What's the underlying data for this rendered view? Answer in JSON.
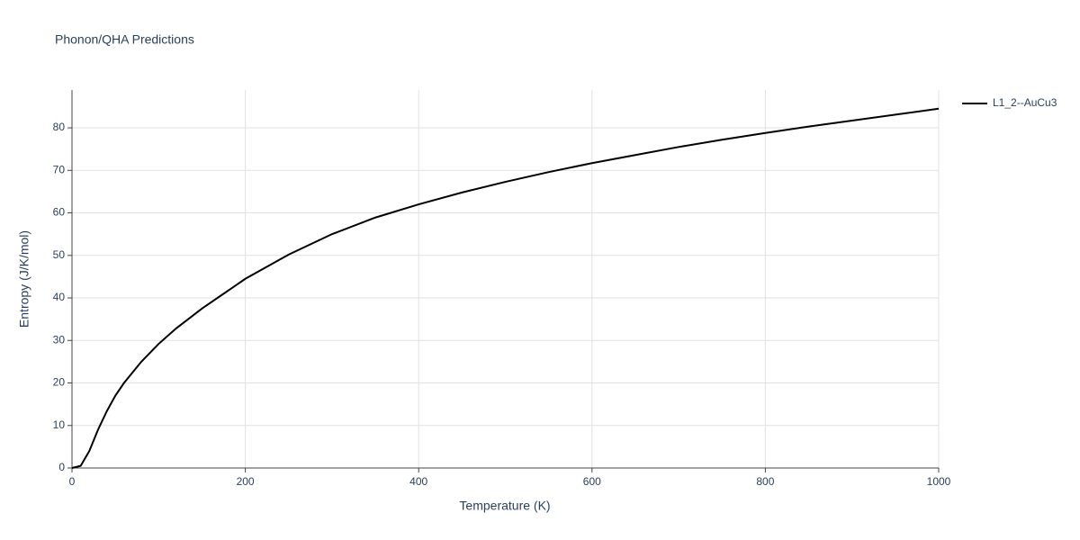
{
  "chart_data": {
    "type": "line",
    "title": "Phonon/QHA Predictions",
    "x_label": "Temperature (K)",
    "y_label": "Entropy (J/K/mol)",
    "x": [
      0,
      10,
      20,
      30,
      40,
      50,
      60,
      80,
      100,
      120,
      150,
      200,
      250,
      300,
      350,
      400,
      450,
      500,
      550,
      600,
      650,
      700,
      750,
      800,
      850,
      900,
      950,
      1000
    ],
    "series": [
      {
        "name": "L1_2--AuCu3",
        "color": "#000000",
        "values": [
          0,
          0.5,
          4,
          9,
          13.3,
          17,
          20,
          25,
          29.2,
          32.8,
          37.5,
          44.5,
          50.2,
          55,
          58.9,
          62,
          64.8,
          67.3,
          69.6,
          71.7,
          73.6,
          75.5,
          77.2,
          78.8,
          80.3,
          81.7,
          83.1,
          84.5
        ]
      }
    ],
    "xlim": [
      0,
      1000
    ],
    "xticks": [
      0,
      200,
      400,
      600,
      800,
      1000
    ],
    "ylim": [
      0,
      88.9
    ],
    "yticks": [
      0,
      10,
      20,
      30,
      40,
      50,
      60,
      70,
      80
    ],
    "grid": true,
    "legend": "right"
  }
}
